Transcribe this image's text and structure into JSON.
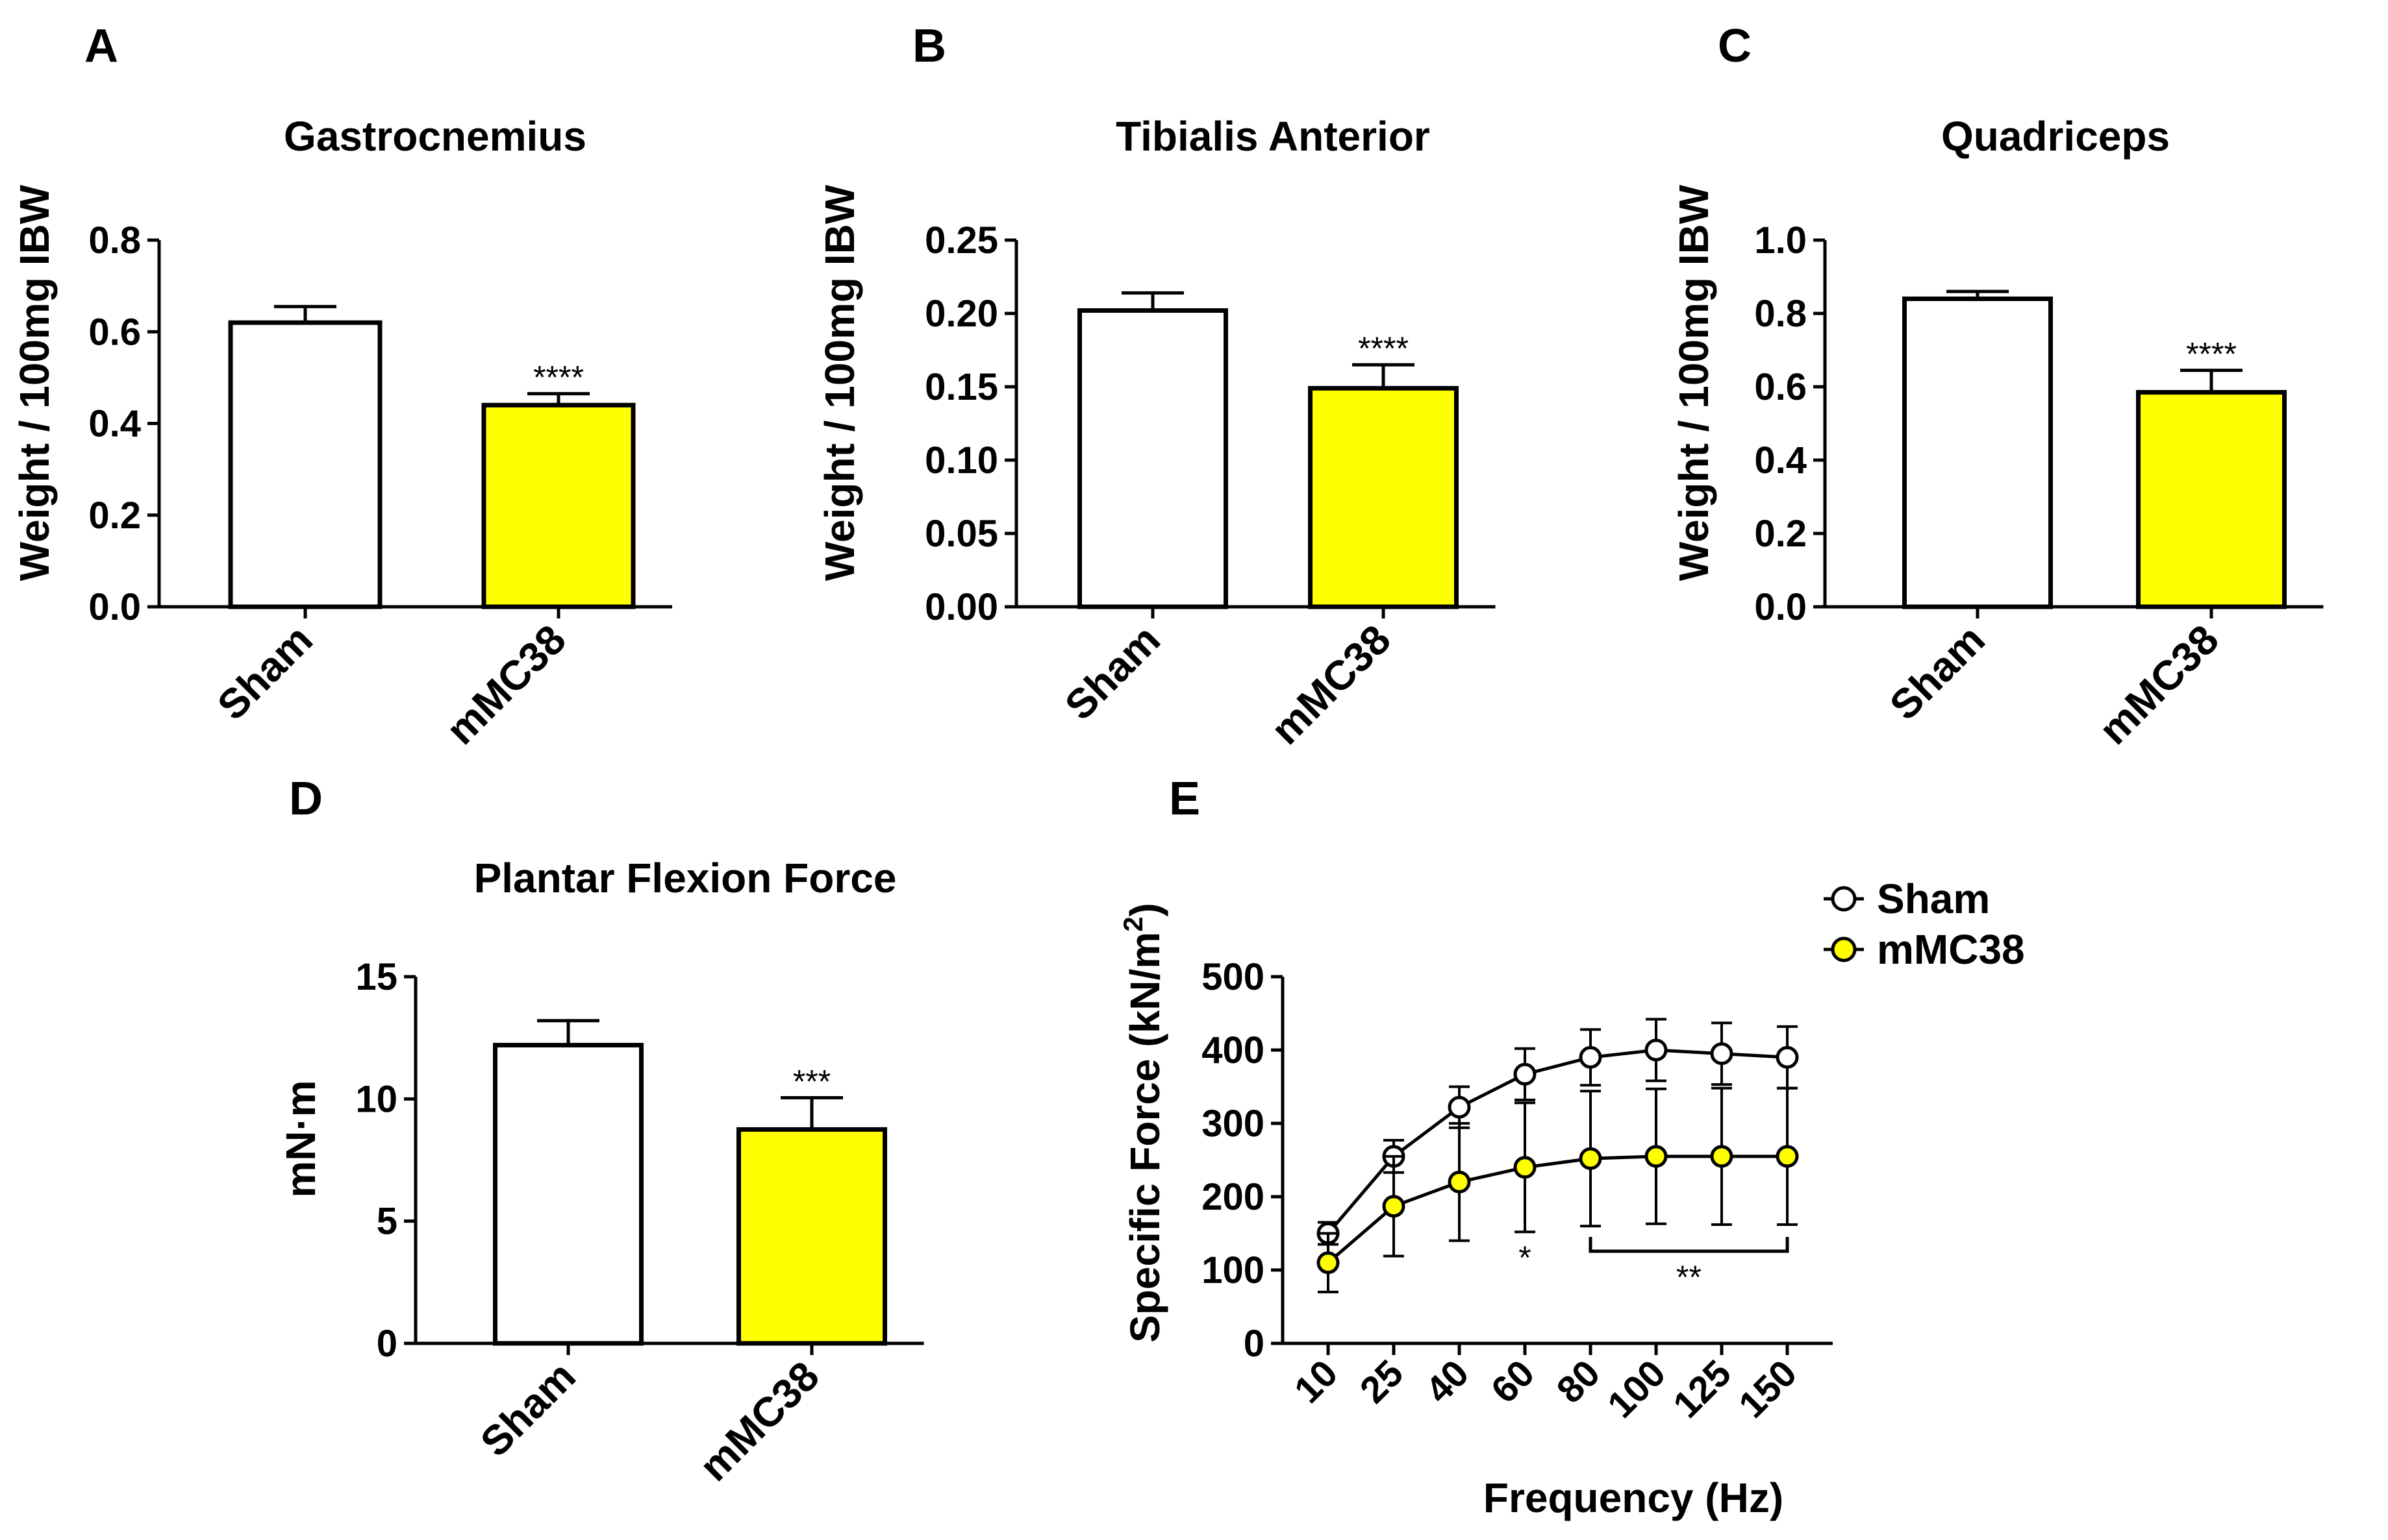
{
  "chart_data": [
    {
      "id": "A",
      "panel_label": "A",
      "type": "bar",
      "title": "Gastrocnemius",
      "ylabel": "Weight / 100mg IBW",
      "xlabel": "",
      "ylim": [
        0,
        0.8
      ],
      "yticks": [
        "0.0",
        "0.2",
        "0.4",
        "0.6",
        "0.8"
      ],
      "yticks_values": [
        0,
        0.2,
        0.4,
        0.6,
        0.8
      ],
      "categories": [
        "Sham",
        "mMC38"
      ],
      "values": [
        0.62,
        0.44
      ],
      "errors": [
        0.035,
        0.025
      ],
      "colors": [
        "#ffffff",
        "#ffff00"
      ],
      "significance": [
        "",
        "****"
      ]
    },
    {
      "id": "B",
      "panel_label": "B",
      "type": "bar",
      "title": "Tibialis Anterior",
      "ylabel": "Weight / 100mg IBW",
      "xlabel": "",
      "ylim": [
        0,
        0.25
      ],
      "yticks": [
        "0.00",
        "0.05",
        "0.10",
        "0.15",
        "0.20",
        "0.25"
      ],
      "yticks_values": [
        0,
        0.05,
        0.1,
        0.15,
        0.2,
        0.25
      ],
      "categories": [
        "Sham",
        "mMC38"
      ],
      "values": [
        0.202,
        0.149
      ],
      "errors": [
        0.012,
        0.016
      ],
      "colors": [
        "#ffffff",
        "#ffff00"
      ],
      "significance": [
        "",
        "****"
      ]
    },
    {
      "id": "C",
      "panel_label": "C",
      "type": "bar",
      "title": "Quadriceps",
      "ylabel": "Weight / 100mg IBW",
      "xlabel": "",
      "ylim": [
        0,
        1.0
      ],
      "yticks": [
        "0.0",
        "0.2",
        "0.4",
        "0.6",
        "0.8",
        "1.0"
      ],
      "yticks_values": [
        0,
        0.2,
        0.4,
        0.6,
        0.8,
        1.0
      ],
      "categories": [
        "Sham",
        "mMC38"
      ],
      "values": [
        0.84,
        0.585
      ],
      "errors": [
        0.02,
        0.06
      ],
      "colors": [
        "#ffffff",
        "#ffff00"
      ],
      "significance": [
        "",
        "****"
      ]
    },
    {
      "id": "D",
      "panel_label": "D",
      "type": "bar",
      "title": "Plantar Flexion Force",
      "ylabel": "mN·m",
      "xlabel": "",
      "ylim": [
        0,
        15
      ],
      "yticks": [
        "0",
        "5",
        "10",
        "15"
      ],
      "yticks_values": [
        0,
        5,
        10,
        15
      ],
      "categories": [
        "Sham",
        "mMC38"
      ],
      "values": [
        12.2,
        8.75
      ],
      "errors": [
        1.0,
        1.3
      ],
      "colors": [
        "#ffffff",
        "#ffff00"
      ],
      "significance": [
        "",
        "***"
      ]
    },
    {
      "id": "E",
      "panel_label": "E",
      "type": "line",
      "title": "",
      "ylabel": "Specific Force (kN/m",
      "ylabel_sup": "2",
      "ylabel_end": ")",
      "xlabel": "Frequency (Hz)",
      "ylim": [
        0,
        500
      ],
      "yticks": [
        "0",
        "100",
        "200",
        "300",
        "400",
        "500"
      ],
      "yticks_values": [
        0,
        100,
        200,
        300,
        400,
        500
      ],
      "categories": [
        "10",
        "25",
        "40",
        "60",
        "80",
        "100",
        "125",
        "150"
      ],
      "series": [
        {
          "name": "Sham",
          "color": "#ffffff",
          "values": [
            150,
            255,
            322,
            367,
            390,
            400,
            395,
            390
          ],
          "errors": [
            15,
            22,
            28,
            35,
            38,
            42,
            42,
            42
          ]
        },
        {
          "name": "mMC38",
          "color": "#ffff00",
          "values": [
            110,
            187,
            220,
            240,
            252,
            255,
            255,
            255
          ],
          "errors": [
            40,
            68,
            80,
            88,
            92,
            92,
            93,
            93
          ]
        }
      ],
      "annotations": {
        "single_star": "*",
        "single_star_category": "60",
        "bracket_label": "**",
        "bracket_from": "80",
        "bracket_to": "150"
      },
      "legend": "top-right"
    }
  ]
}
